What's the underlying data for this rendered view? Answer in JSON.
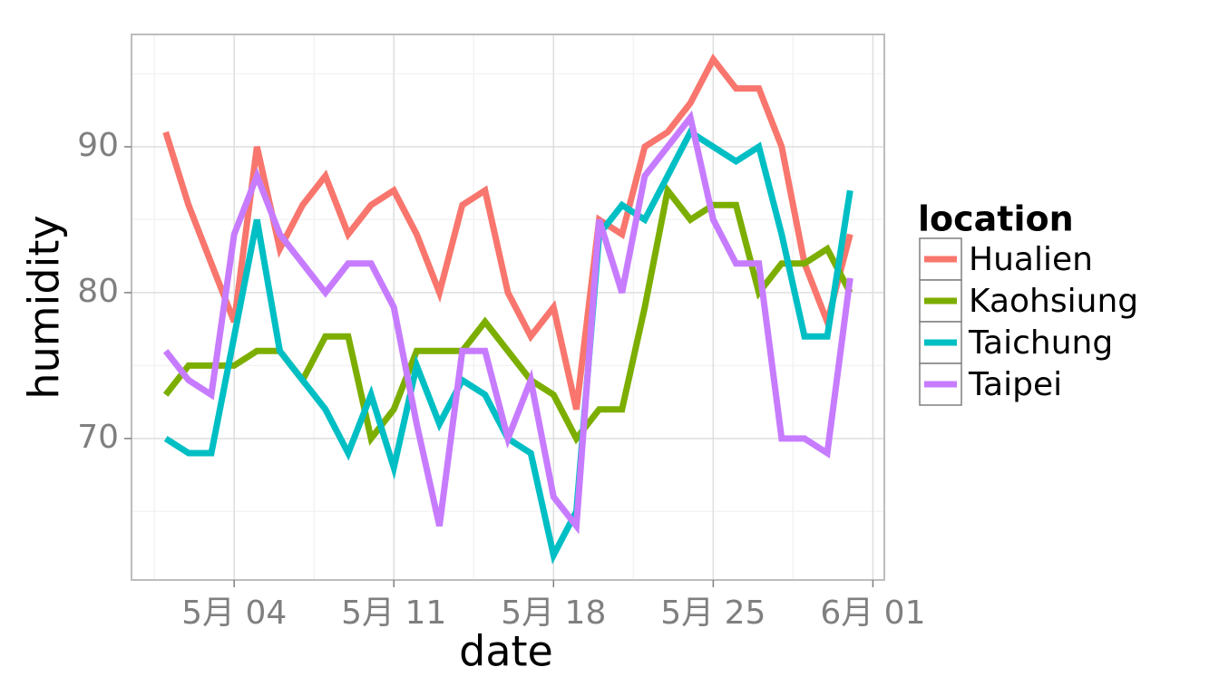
{
  "chart_data": {
    "type": "line",
    "x_label": "date",
    "y_label": "humidity",
    "legend_title": "location",
    "legend_position": "right",
    "grid": true,
    "x": [
      1,
      2,
      3,
      4,
      5,
      6,
      7,
      8,
      9,
      10,
      11,
      12,
      13,
      14,
      15,
      16,
      17,
      18,
      19,
      20,
      21,
      22,
      23,
      24,
      25,
      26,
      27,
      28,
      29,
      30,
      31
    ],
    "xlim": [
      -0.5,
      32.5
    ],
    "xticks": [
      {
        "value": 4,
        "label": "5月 04"
      },
      {
        "value": 11,
        "label": "5月 11"
      },
      {
        "value": 18,
        "label": "5月 18"
      },
      {
        "value": 25,
        "label": "5月 25"
      },
      {
        "value": 32,
        "label": "6月 01"
      }
    ],
    "ylim": [
      60.3,
      97.7
    ],
    "yticks": [
      70,
      80,
      90
    ],
    "series": [
      {
        "name": "Hualien",
        "color": "#F8766D",
        "values": [
          91,
          86,
          82,
          78,
          90,
          83,
          86,
          88,
          84,
          86,
          87,
          84,
          80,
          86,
          87,
          80,
          77,
          79,
          72,
          85,
          84,
          90,
          91,
          93,
          96,
          94,
          94,
          90,
          82,
          78,
          84
        ]
      },
      {
        "name": "Kaohsiung",
        "color": "#7CAE00",
        "values": [
          73,
          75,
          75,
          75,
          76,
          76,
          74,
          77,
          77,
          70,
          72,
          76,
          76,
          76,
          78,
          76,
          74,
          73,
          70,
          72,
          72,
          79,
          87,
          85,
          86,
          86,
          80,
          82,
          82,
          83,
          80
        ]
      },
      {
        "name": "Taichung",
        "color": "#00BFC4",
        "values": [
          70,
          69,
          69,
          77,
          85,
          76,
          74,
          72,
          69,
          73,
          68,
          75,
          71,
          74,
          73,
          70,
          69,
          62,
          65,
          84,
          86,
          85,
          88,
          91,
          90,
          89,
          90,
          84,
          77,
          77,
          87
        ]
      },
      {
        "name": "Taipei",
        "color": "#C77CFF",
        "values": [
          76,
          74,
          73,
          84,
          88,
          84,
          82,
          80,
          82,
          82,
          79,
          71,
          64,
          76,
          76,
          70,
          74,
          66,
          64,
          85,
          80,
          88,
          90,
          92,
          85,
          82,
          82,
          70,
          70,
          69,
          81
        ]
      }
    ]
  }
}
